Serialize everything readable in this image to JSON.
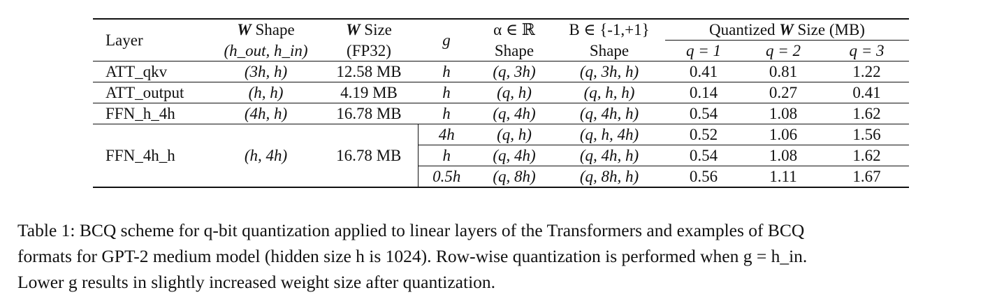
{
  "table": {
    "header": {
      "layer": "Layer",
      "w_shape_sym": "W",
      "w_shape_label": "Shape",
      "w_shape_dims": "(h_out, h_in)",
      "w_size_sym": "W",
      "w_size_label": "Size",
      "w_size_sub": "(FP32)",
      "g": "g",
      "alpha_top": "α ∈ ℝ",
      "alpha_bottom": "Shape",
      "b_top": "B ∈ {-1,+1}",
      "b_bottom": "Shape",
      "quant_prefix": "Quantized",
      "quant_sym": "W",
      "quant_suffix": "Size (MB)",
      "q1": "q = 1",
      "q2": "q = 2",
      "q3": "q = 3"
    },
    "rows": [
      {
        "layer": "ATT_qkv",
        "shape": "(3h, h)",
        "size": "12.58 MB",
        "g": "h",
        "alpha": "(q, 3h)",
        "b": "(q, 3h, h)",
        "q1": "0.41",
        "q2": "0.81",
        "q3": "1.22"
      },
      {
        "layer": "ATT_output",
        "shape": "(h, h)",
        "size": "4.19 MB",
        "g": "h",
        "alpha": "(q, h)",
        "b": "(q, h, h)",
        "q1": "0.14",
        "q2": "0.27",
        "q3": "0.41"
      },
      {
        "layer": "FFN_h_4h",
        "shape": "(4h, h)",
        "size": "16.78 MB",
        "g": "h",
        "alpha": "(q, 4h)",
        "b": "(q, 4h, h)",
        "q1": "0.54",
        "q2": "1.08",
        "q3": "1.62"
      }
    ],
    "group": {
      "layer": "FFN_4h_h",
      "shape": "(h, 4h)",
      "size": "16.78 MB",
      "subrows": [
        {
          "g": "4h",
          "alpha": "(q, h)",
          "b": "(q, h, 4h)",
          "q1": "0.52",
          "q2": "1.06",
          "q3": "1.56"
        },
        {
          "g": "h",
          "alpha": "(q, 4h)",
          "b": "(q, 4h, h)",
          "q1": "0.54",
          "q2": "1.08",
          "q3": "1.62"
        },
        {
          "g": "0.5h",
          "alpha": "(q, 8h)",
          "b": "(q, 8h, h)",
          "q1": "0.56",
          "q2": "1.11",
          "q3": "1.67"
        }
      ]
    }
  },
  "caption": {
    "line1": "Table 1: BCQ scheme for q-bit quantization applied to linear layers of the Transformers and examples of BCQ",
    "line2": "formats for GPT-2 medium model (hidden size h is 1024). Row-wise quantization is performed when g = h_in.",
    "line3": "Lower g results in slightly increased weight size after quantization."
  }
}
